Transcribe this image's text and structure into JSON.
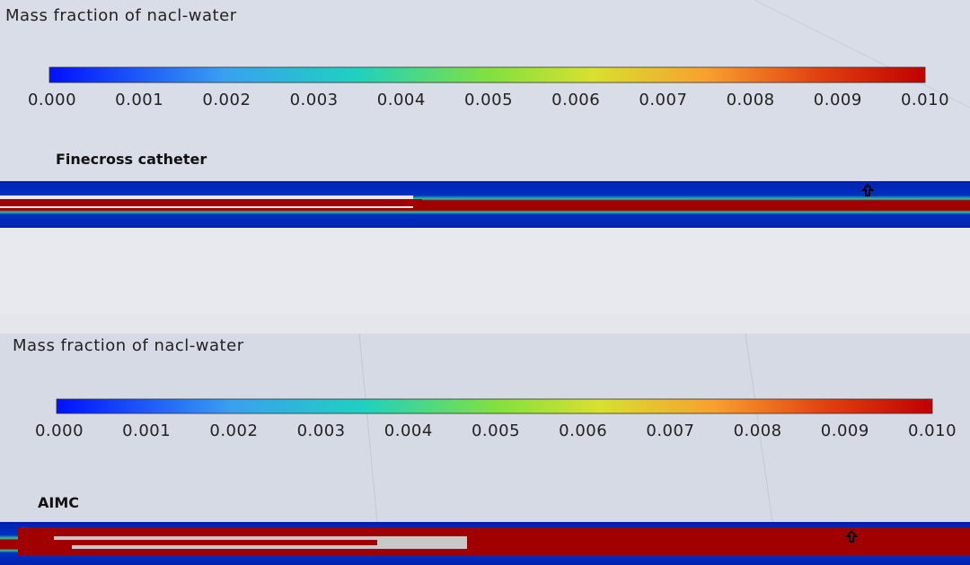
{
  "panels": [
    {
      "title": "Mass fraction of nacl-water",
      "ticks": [
        "0.000",
        "0.001",
        "0.002",
        "0.003",
        "0.004",
        "0.005",
        "0.006",
        "0.007",
        "0.008",
        "0.009",
        "0.010"
      ],
      "label": "Finecross catheter"
    },
    {
      "title": "Mass fraction of nacl-water",
      "ticks": [
        "0.000",
        "0.001",
        "0.002",
        "0.003",
        "0.004",
        "0.005",
        "0.006",
        "0.007",
        "0.008",
        "0.009",
        "0.010"
      ],
      "label": "AIMC"
    }
  ]
}
